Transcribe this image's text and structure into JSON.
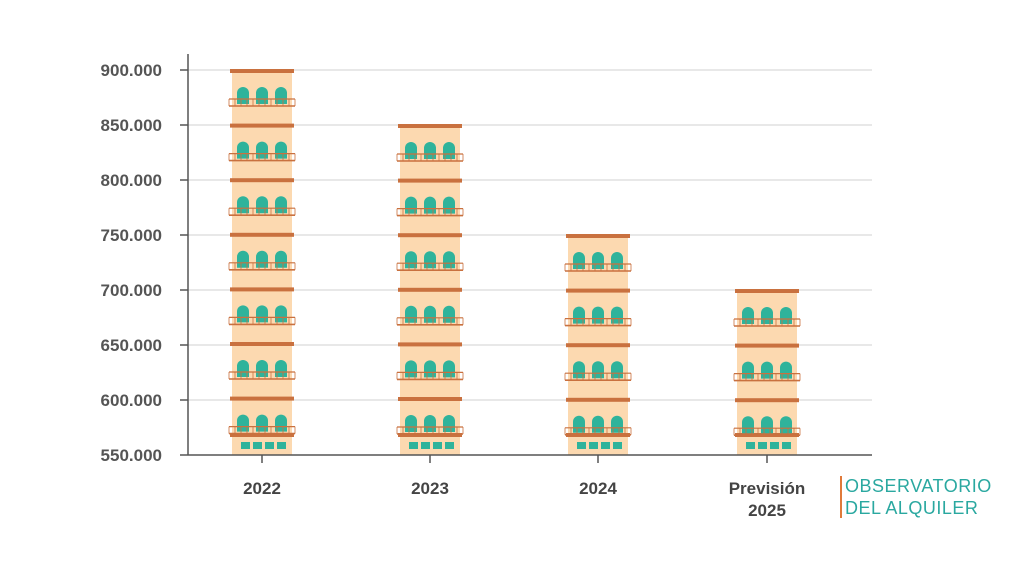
{
  "chart_data": {
    "type": "bar",
    "categories": [
      "2022",
      "2023",
      "2024",
      "Previsión 2025"
    ],
    "values": [
      900000,
      850000,
      750000,
      700000
    ],
    "yticks": [
      "550.000",
      "600.000",
      "650.000",
      "700.000",
      "750.000",
      "800.000",
      "850.000",
      "900.000"
    ],
    "ylim": [
      550000,
      900000
    ],
    "grid": true,
    "colors": {
      "building": "#fcd9b0",
      "floor_band": "#c9713f",
      "window": "#2fb39b",
      "grid": "#d0d0d0",
      "axis": "#555555"
    }
  },
  "logo": {
    "line1": "OBSERVATORIO",
    "line2": "DEL ALQUILER"
  }
}
